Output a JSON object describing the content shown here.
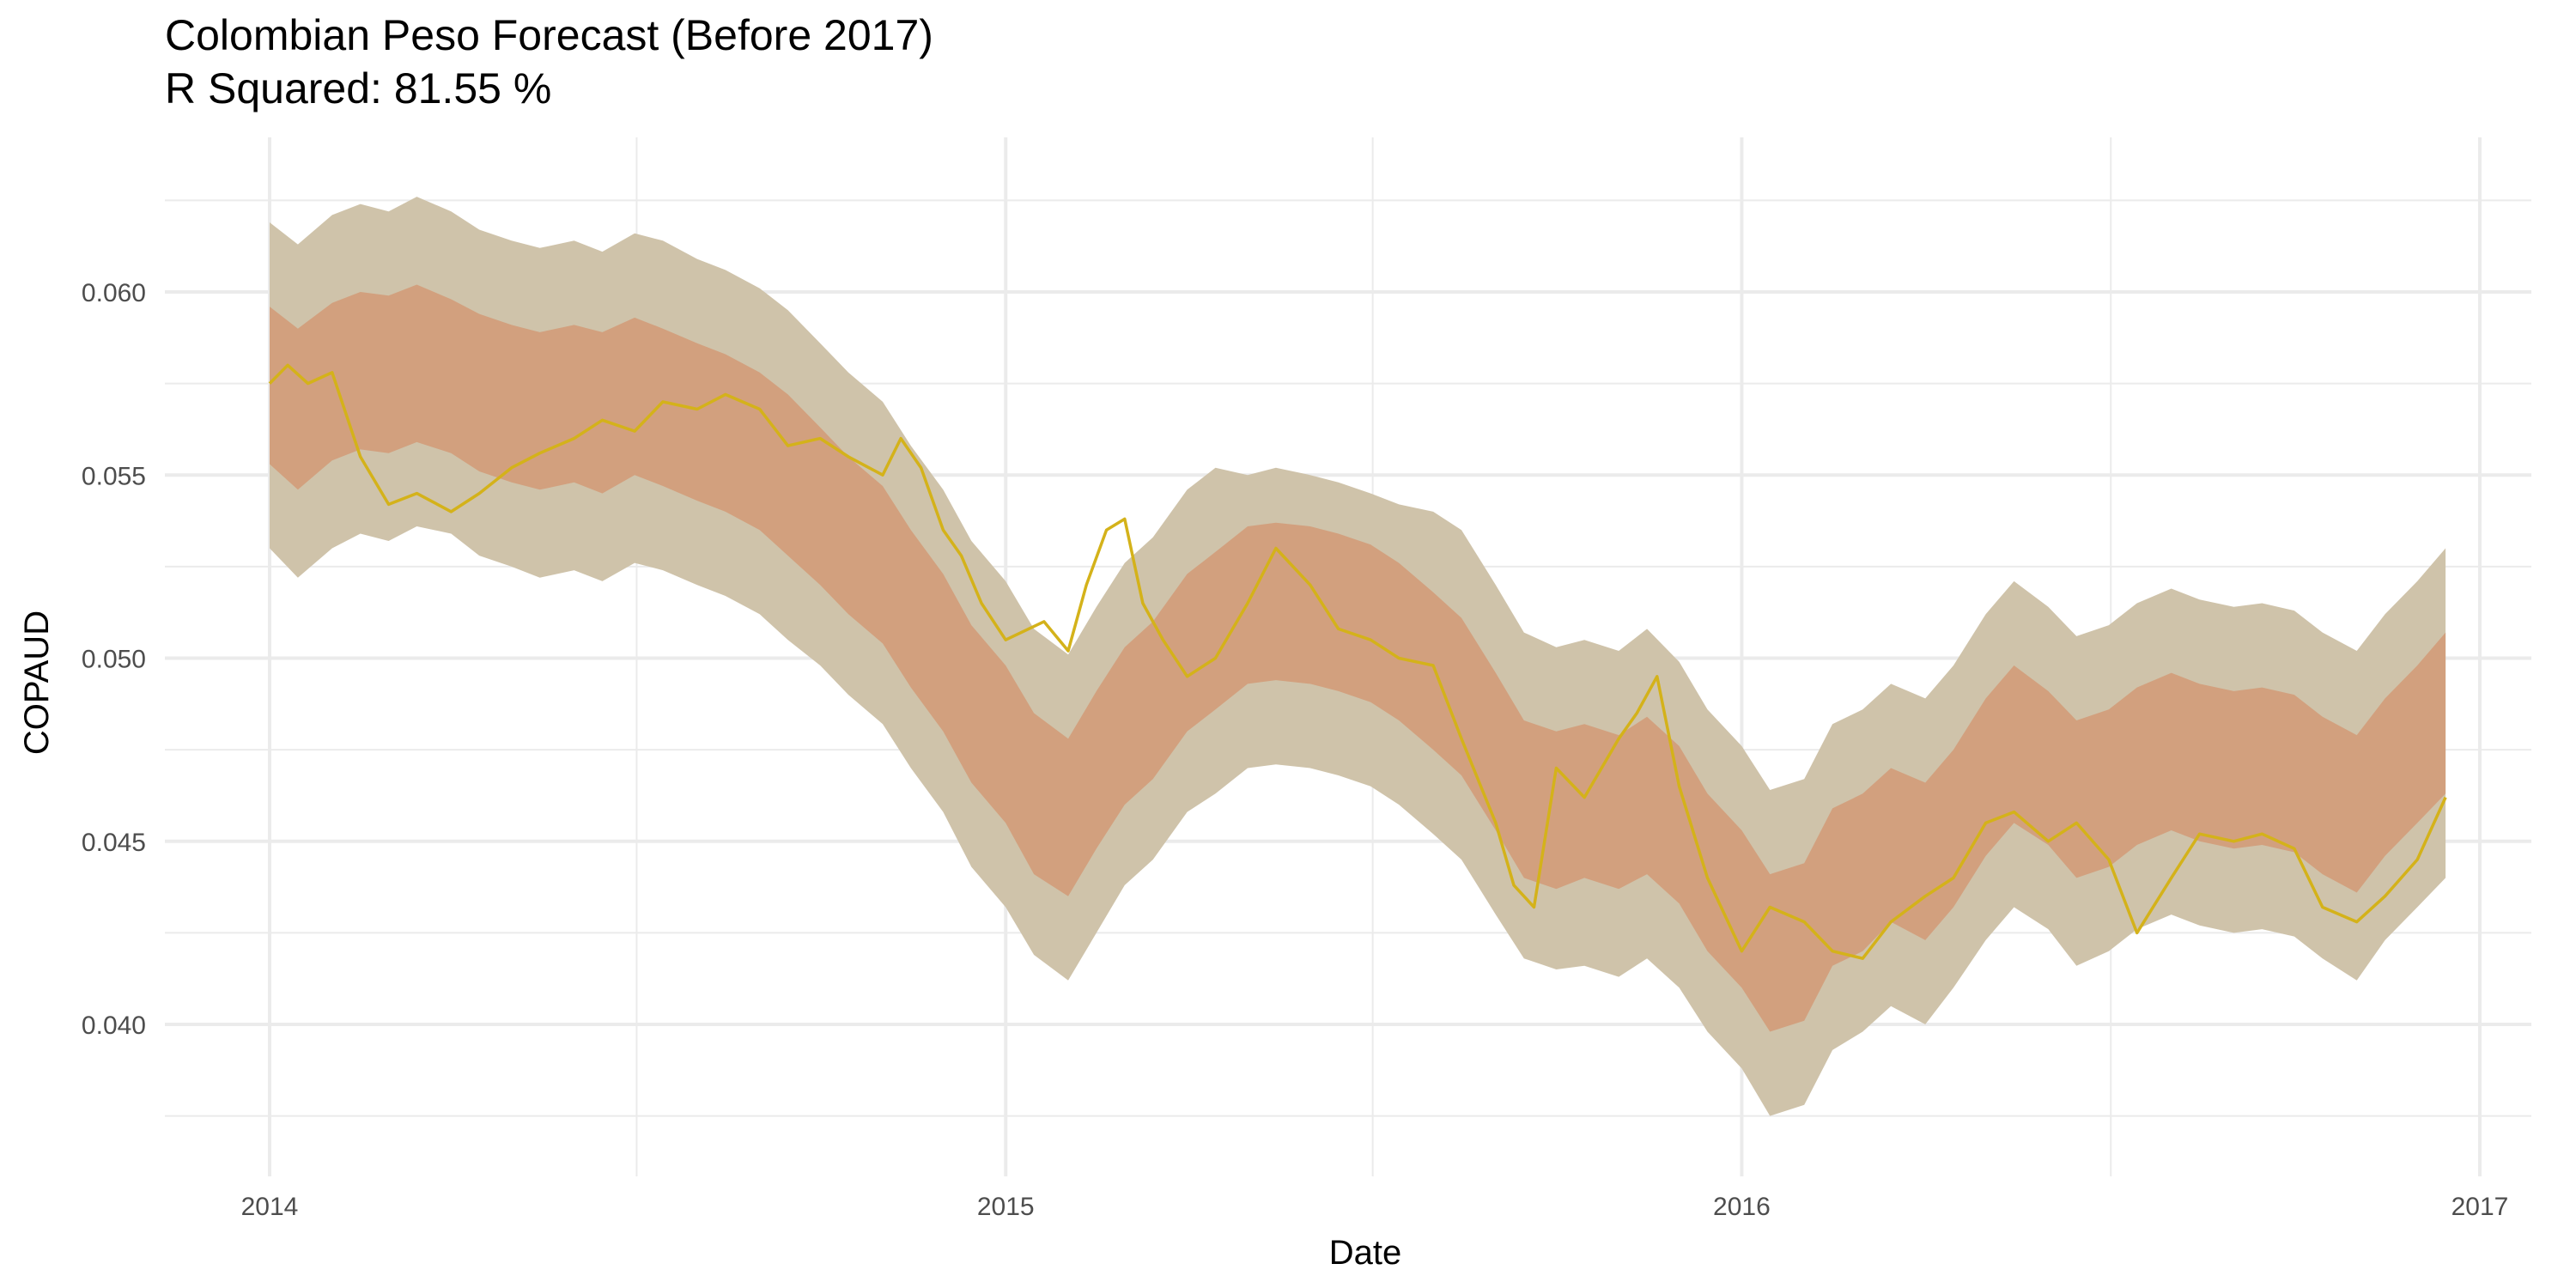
{
  "chart_data": {
    "type": "area",
    "title": "Colombian Peso Forecast (Before 2017)",
    "subtitle": "R Squared: 81.55 %",
    "xlabel": "Date",
    "ylabel": "COPAUD",
    "xlim": [
      "2014-01-01",
      "2017-01-01"
    ],
    "ylim": [
      0.0365,
      0.0635
    ],
    "grid": true,
    "x_ticks": [
      "2014",
      "2015",
      "2016",
      "2017"
    ],
    "y_ticks": [
      "0.040",
      "0.045",
      "0.050",
      "0.055",
      "0.060"
    ],
    "colors": {
      "outer_band": "#cfc3aa",
      "inner_band": "#d2a07e",
      "actual_line": "#d4b21a",
      "actual_line_highlight": "#f0d400",
      "grid": "#ebebeb"
    },
    "series": [
      {
        "type": "band",
        "dates": [
          "2014-01-01",
          "2014-01-15",
          "2014-02-01",
          "2014-02-15",
          "2014-03-01",
          "2014-03-15",
          "2014-04-01",
          "2014-04-15",
          "2014-05-01",
          "2014-05-15",
          "2014-06-01",
          "2014-06-15",
          "2014-07-01",
          "2014-07-15",
          "2014-08-01",
          "2014-08-15",
          "2014-09-01",
          "2014-09-15",
          "2014-10-01",
          "2014-10-15",
          "2014-11-01",
          "2014-11-15",
          "2014-12-01",
          "2014-12-15",
          "2015-01-01",
          "2015-01-15",
          "2015-02-01",
          "2015-02-15",
          "2015-03-01",
          "2015-03-15",
          "2015-04-01",
          "2015-04-15",
          "2015-05-01",
          "2015-05-15",
          "2015-06-01",
          "2015-06-15",
          "2015-07-01",
          "2015-07-15",
          "2015-08-01",
          "2015-08-15",
          "2015-09-01",
          "2015-09-15",
          "2015-10-01",
          "2015-10-15",
          "2015-11-01",
          "2015-11-15",
          "2015-12-01",
          "2015-12-15",
          "2016-01-01",
          "2016-01-15",
          "2016-02-01",
          "2016-02-15",
          "2016-03-01",
          "2016-03-15",
          "2016-04-01",
          "2016-04-15",
          "2016-05-01",
          "2016-05-15",
          "2016-06-01",
          "2016-06-15",
          "2016-07-01",
          "2016-07-15",
          "2016-08-01",
          "2016-08-15",
          "2016-09-01",
          "2016-09-15",
          "2016-10-01",
          "2016-10-15",
          "2016-11-01",
          "2016-11-15",
          "2016-12-01",
          "2016-12-15"
        ],
        "lower": [
          0.053,
          0.0522,
          0.053,
          0.0534,
          0.0532,
          0.0536,
          0.0534,
          0.0528,
          0.0525,
          0.0522,
          0.0524,
          0.0521,
          0.0526,
          0.0524,
          0.052,
          0.0517,
          0.0512,
          0.0505,
          0.0498,
          0.049,
          0.0482,
          0.047,
          0.0458,
          0.0443,
          0.0432,
          0.0419,
          0.0412,
          0.0425,
          0.0438,
          0.0445,
          0.0458,
          0.0463,
          0.047,
          0.0471,
          0.047,
          0.0468,
          0.0465,
          0.046,
          0.0452,
          0.0445,
          0.043,
          0.0418,
          0.0415,
          0.0416,
          0.0413,
          0.0418,
          0.041,
          0.0398,
          0.0388,
          0.0375,
          0.0378,
          0.0393,
          0.0398,
          0.0405,
          0.04,
          0.041,
          0.0423,
          0.0432,
          0.0426,
          0.0416,
          0.042,
          0.0426,
          0.043,
          0.0427,
          0.0425,
          0.0426,
          0.0424,
          0.0418,
          0.0412,
          0.0423,
          0.0432,
          0.044
        ],
        "inner_lower": [
          0.0553,
          0.0546,
          0.0554,
          0.0557,
          0.0556,
          0.0559,
          0.0556,
          0.0551,
          0.0548,
          0.0546,
          0.0548,
          0.0545,
          0.055,
          0.0547,
          0.0543,
          0.054,
          0.0535,
          0.0528,
          0.052,
          0.0512,
          0.0504,
          0.0492,
          0.048,
          0.0466,
          0.0455,
          0.0441,
          0.0435,
          0.0448,
          0.046,
          0.0467,
          0.048,
          0.0486,
          0.0493,
          0.0494,
          0.0493,
          0.0491,
          0.0488,
          0.0483,
          0.0475,
          0.0468,
          0.0453,
          0.044,
          0.0437,
          0.044,
          0.0437,
          0.0441,
          0.0433,
          0.042,
          0.041,
          0.0398,
          0.0401,
          0.0416,
          0.042,
          0.0428,
          0.0423,
          0.0432,
          0.0446,
          0.0455,
          0.0449,
          0.044,
          0.0443,
          0.0449,
          0.0453,
          0.045,
          0.0448,
          0.0449,
          0.0447,
          0.0441,
          0.0436,
          0.0446,
          0.0455,
          0.0463
        ],
        "inner_upper": [
          0.0596,
          0.059,
          0.0597,
          0.06,
          0.0599,
          0.0602,
          0.0598,
          0.0594,
          0.0591,
          0.0589,
          0.0591,
          0.0589,
          0.0593,
          0.059,
          0.0586,
          0.0583,
          0.0578,
          0.0572,
          0.0563,
          0.0555,
          0.0547,
          0.0535,
          0.0523,
          0.0509,
          0.0498,
          0.0485,
          0.0478,
          0.0491,
          0.0503,
          0.051,
          0.0523,
          0.0529,
          0.0536,
          0.0537,
          0.0536,
          0.0534,
          0.0531,
          0.0526,
          0.0518,
          0.0511,
          0.0496,
          0.0483,
          0.048,
          0.0482,
          0.0479,
          0.0484,
          0.0476,
          0.0463,
          0.0453,
          0.0441,
          0.0444,
          0.0459,
          0.0463,
          0.047,
          0.0466,
          0.0475,
          0.0489,
          0.0498,
          0.0491,
          0.0483,
          0.0486,
          0.0492,
          0.0496,
          0.0493,
          0.0491,
          0.0492,
          0.049,
          0.0484,
          0.0479,
          0.0489,
          0.0498,
          0.0507
        ],
        "upper": [
          0.0619,
          0.0613,
          0.0621,
          0.0624,
          0.0622,
          0.0626,
          0.0622,
          0.0617,
          0.0614,
          0.0612,
          0.0614,
          0.0611,
          0.0616,
          0.0614,
          0.0609,
          0.0606,
          0.0601,
          0.0595,
          0.0586,
          0.0578,
          0.057,
          0.0558,
          0.0546,
          0.0532,
          0.0521,
          0.0508,
          0.0501,
          0.0514,
          0.0526,
          0.0533,
          0.0546,
          0.0552,
          0.055,
          0.0552,
          0.055,
          0.0548,
          0.0545,
          0.0542,
          0.054,
          0.0535,
          0.052,
          0.0507,
          0.0503,
          0.0505,
          0.0502,
          0.0508,
          0.0499,
          0.0486,
          0.0476,
          0.0464,
          0.0467,
          0.0482,
          0.0486,
          0.0493,
          0.0489,
          0.0498,
          0.0512,
          0.0521,
          0.0514,
          0.0506,
          0.0509,
          0.0515,
          0.0519,
          0.0516,
          0.0514,
          0.0515,
          0.0513,
          0.0507,
          0.0502,
          0.0512,
          0.0521,
          0.053
        ]
      },
      {
        "type": "line",
        "dates": [
          "2014-01-01",
          "2014-01-10",
          "2014-01-20",
          "2014-02-01",
          "2014-02-15",
          "2014-03-01",
          "2014-03-15",
          "2014-04-01",
          "2014-04-15",
          "2014-05-01",
          "2014-05-15",
          "2014-06-01",
          "2014-06-15",
          "2014-07-01",
          "2014-07-15",
          "2014-08-01",
          "2014-08-15",
          "2014-09-01",
          "2014-09-15",
          "2014-10-01",
          "2014-10-15",
          "2014-11-01",
          "2014-11-10",
          "2014-11-20",
          "2014-12-01",
          "2014-12-10",
          "2014-12-20",
          "2015-01-01",
          "2015-01-20",
          "2015-02-01",
          "2015-02-10",
          "2015-02-20",
          "2015-03-01",
          "2015-03-10",
          "2015-03-20",
          "2015-04-01",
          "2015-04-15",
          "2015-05-01",
          "2015-05-15",
          "2015-06-01",
          "2015-06-15",
          "2015-07-01",
          "2015-07-15",
          "2015-08-01",
          "2015-08-15",
          "2015-09-01",
          "2015-09-10",
          "2015-09-20",
          "2015-10-01",
          "2015-10-15",
          "2015-11-01",
          "2015-11-10",
          "2015-11-20",
          "2015-12-01",
          "2015-12-15",
          "2016-01-01",
          "2016-01-15",
          "2016-02-01",
          "2016-02-15",
          "2016-03-01",
          "2016-03-15",
          "2016-04-01",
          "2016-04-15",
          "2016-05-01",
          "2016-05-15",
          "2016-06-01",
          "2016-06-15",
          "2016-07-01",
          "2016-07-15",
          "2016-08-01",
          "2016-08-15",
          "2016-09-01",
          "2016-09-15",
          "2016-10-01",
          "2016-10-15",
          "2016-11-01",
          "2016-11-15",
          "2016-12-01",
          "2016-12-15"
        ],
        "values": [
          0.0575,
          0.058,
          0.0575,
          0.0578,
          0.0555,
          0.0542,
          0.0545,
          0.054,
          0.0545,
          0.0552,
          0.0556,
          0.056,
          0.0565,
          0.0562,
          0.057,
          0.0568,
          0.0572,
          0.0568,
          0.0558,
          0.056,
          0.0555,
          0.055,
          0.056,
          0.0552,
          0.0535,
          0.0528,
          0.0515,
          0.0505,
          0.051,
          0.0502,
          0.052,
          0.0535,
          0.0538,
          0.0515,
          0.0505,
          0.0495,
          0.05,
          0.0515,
          0.053,
          0.052,
          0.0508,
          0.0505,
          0.05,
          0.0498,
          0.0478,
          0.0455,
          0.0438,
          0.0432,
          0.047,
          0.0462,
          0.0478,
          0.0485,
          0.0495,
          0.0465,
          0.044,
          0.042,
          0.0432,
          0.0428,
          0.042,
          0.0418,
          0.0428,
          0.0435,
          0.044,
          0.0455,
          0.0458,
          0.045,
          0.0455,
          0.0445,
          0.0425,
          0.044,
          0.0452,
          0.045,
          0.0452,
          0.0448,
          0.0432,
          0.0428,
          0.0435,
          0.0445,
          0.0462
        ]
      }
    ]
  }
}
